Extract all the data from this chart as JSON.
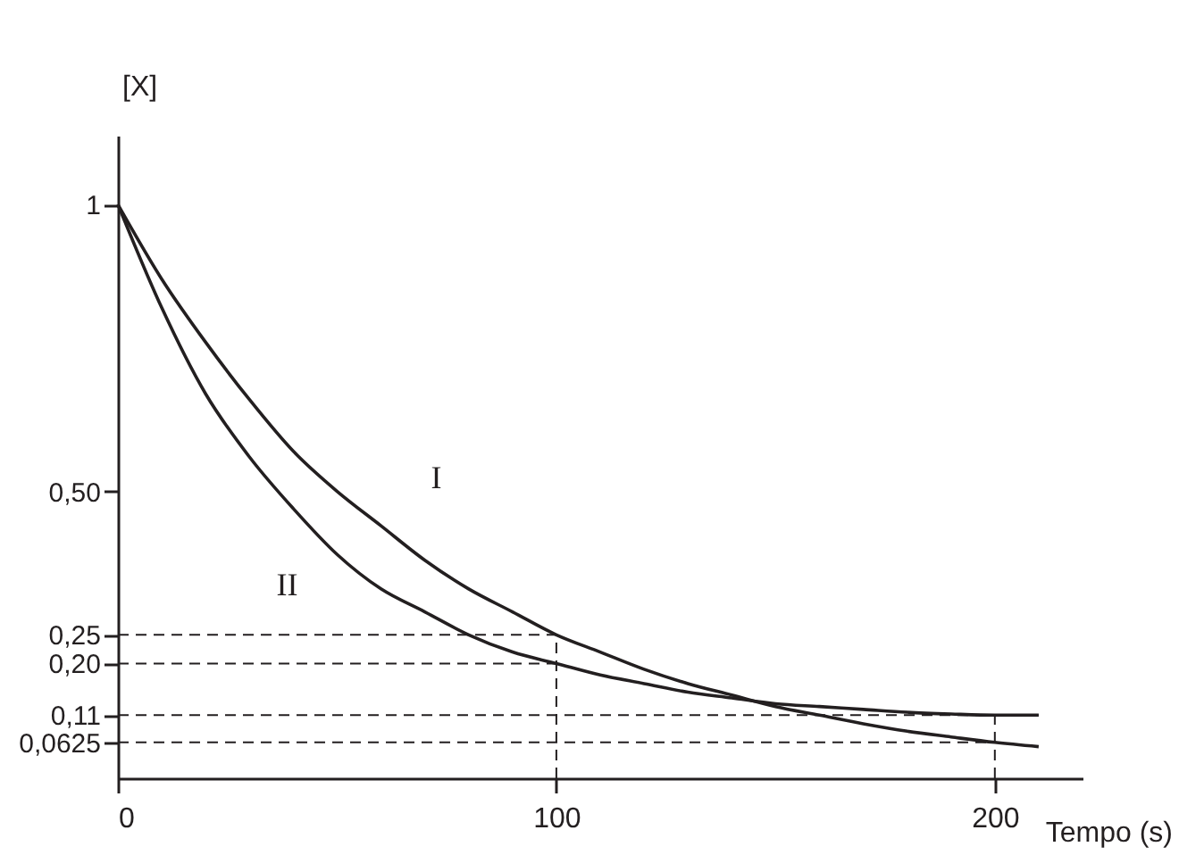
{
  "chart_data": {
    "type": "line",
    "xlabel": "Tempo (s)",
    "ylabel": "[X]",
    "x": [
      0,
      10,
      20,
      30,
      40,
      50,
      60,
      70,
      80,
      90,
      100,
      110,
      120,
      130,
      140,
      150,
      160,
      170,
      180,
      190,
      200,
      210
    ],
    "series": [
      {
        "name": "I",
        "color": "#231f20",
        "values": [
          1,
          0.87,
          0.76,
          0.66,
          0.57,
          0.5,
          0.44,
          0.38,
          0.33,
          0.29,
          0.25,
          0.22,
          0.19,
          0.165,
          0.145,
          0.125,
          0.11,
          0.095,
          0.082,
          0.072,
          0.0625,
          0.055
        ]
      },
      {
        "name": "II",
        "color": "#231f20",
        "values": [
          1,
          0.82,
          0.67,
          0.56,
          0.47,
          0.39,
          0.33,
          0.29,
          0.25,
          0.22,
          0.2,
          0.18,
          0.165,
          0.15,
          0.14,
          0.13,
          0.125,
          0.12,
          0.115,
          0.112,
          0.11,
          0.11
        ]
      }
    ],
    "xlim": [
      0,
      220
    ],
    "ylim": [
      0,
      1.12
    ],
    "xticks": [
      0,
      100,
      200
    ],
    "yticks": [
      {
        "value": 0.0625,
        "label": "0,0625"
      },
      {
        "value": 0.11,
        "label": "0,11"
      },
      {
        "value": 0.2,
        "label": "0,20"
      },
      {
        "value": 0.25,
        "label": "0,25"
      },
      {
        "value": 0.5,
        "label": "0,50"
      },
      1
    ],
    "ref_lines": [
      {
        "axis": "y",
        "value": 0.25,
        "line_style": "dashed"
      },
      {
        "axis": "y",
        "value": 0.2,
        "line_style": "dashed"
      },
      {
        "axis": "y",
        "value": 0.11,
        "line_style": "dashed"
      },
      {
        "axis": "y",
        "value": 0.0625,
        "line_style": "dashed"
      },
      {
        "axis": "x",
        "value": 100,
        "line_style": "dashed"
      },
      {
        "axis": "x",
        "value": 200,
        "line_style": "dashed"
      }
    ],
    "grid": false,
    "legend": false,
    "marker": "none",
    "line_style": "solid"
  }
}
